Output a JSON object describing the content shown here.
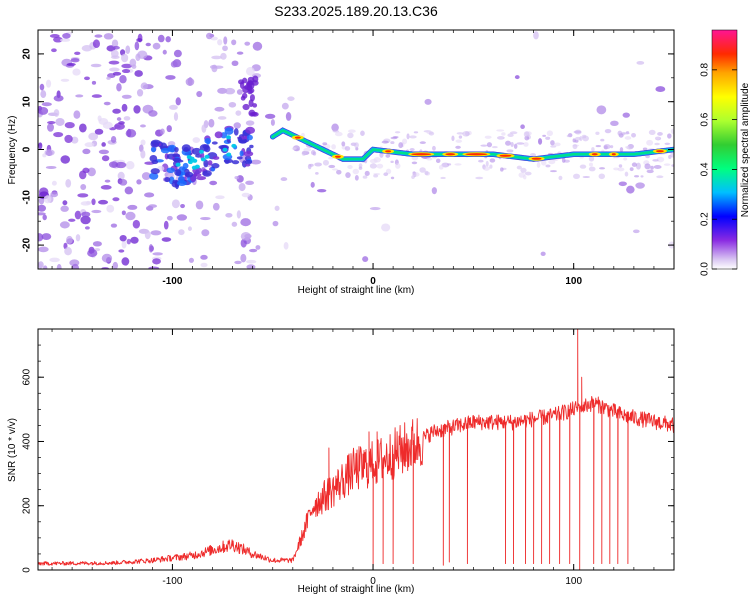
{
  "title": "S233.2025.189.20.13.C36",
  "chart_data": [
    {
      "type": "heatmap",
      "xlabel": "Height of straight line (km)",
      "ylabel": "Frequency (Hz)",
      "xlim": [
        -167,
        150
      ],
      "ylim": [
        -25,
        25
      ],
      "x_ticks": [
        -100,
        0,
        100
      ],
      "y_ticks": [
        -20,
        -10,
        0,
        10,
        20
      ],
      "colorbar": {
        "label": "Normalized spectral amplitude",
        "range": [
          0,
          0.96
        ],
        "ticks": [
          0.0,
          0.2,
          0.4,
          0.6,
          0.8
        ]
      },
      "ridge": {
        "description_points": [
          {
            "x": -110,
            "y": -2
          },
          {
            "x": -95,
            "y": -4
          },
          {
            "x": -80,
            "y": -1
          },
          {
            "x": -70,
            "y": 1
          },
          {
            "x": -60,
            "y": 0
          },
          {
            "x": -45,
            "y": 4
          },
          {
            "x": -35,
            "y": 2
          },
          {
            "x": -25,
            "y": 0
          },
          {
            "x": -15,
            "y": -2
          },
          {
            "x": -5,
            "y": -2
          },
          {
            "x": 0,
            "y": 0
          },
          {
            "x": 20,
            "y": -1
          },
          {
            "x": 60,
            "y": -1
          },
          {
            "x": 80,
            "y": -2
          },
          {
            "x": 100,
            "y": -1
          },
          {
            "x": 130,
            "y": -1
          },
          {
            "x": 150,
            "y": 0
          }
        ]
      }
    },
    {
      "type": "line",
      "xlabel": "Height of straight line (km)",
      "ylabel": "SNR (10 * v/v)",
      "xlim": [
        -167,
        150
      ],
      "ylim": [
        0,
        750
      ],
      "x_ticks": [
        -100,
        0,
        100
      ],
      "y_ticks": [
        0,
        200,
        400,
        600
      ],
      "series": [
        {
          "color": "#ee2b2b",
          "envelope": [
            {
              "x": -167,
              "y": 20
            },
            {
              "x": -130,
              "y": 22
            },
            {
              "x": -110,
              "y": 30
            },
            {
              "x": -90,
              "y": 45
            },
            {
              "x": -70,
              "y": 80
            },
            {
              "x": -60,
              "y": 50
            },
            {
              "x": -50,
              "y": 30
            },
            {
              "x": -40,
              "y": 30
            },
            {
              "x": -35,
              "y": 110
            },
            {
              "x": -30,
              "y": 200
            },
            {
              "x": -20,
              "y": 250
            },
            {
              "x": -10,
              "y": 310
            },
            {
              "x": 0,
              "y": 330
            },
            {
              "x": 10,
              "y": 360
            },
            {
              "x": 20,
              "y": 390
            },
            {
              "x": 30,
              "y": 430
            },
            {
              "x": 50,
              "y": 460
            },
            {
              "x": 70,
              "y": 460
            },
            {
              "x": 90,
              "y": 480
            },
            {
              "x": 100,
              "y": 500
            },
            {
              "x": 110,
              "y": 520
            },
            {
              "x": 125,
              "y": 480
            },
            {
              "x": 150,
              "y": 450
            }
          ],
          "spikes_up": [
            {
              "x": -22,
              "y": 380
            },
            {
              "x": -2,
              "y": 430
            },
            {
              "x": 2,
              "y": 430
            },
            {
              "x": 102,
              "y": 750
            },
            {
              "x": 104,
              "y": 600
            }
          ],
          "dropouts": [
            {
              "x": 0,
              "y": 10
            },
            {
              "x": 5,
              "y": 20
            },
            {
              "x": 10,
              "y": 20
            },
            {
              "x": 20,
              "y": 20
            },
            {
              "x": 35,
              "y": 15
            },
            {
              "x": 38,
              "y": 25
            },
            {
              "x": 47,
              "y": 20
            },
            {
              "x": 66,
              "y": 20
            },
            {
              "x": 70,
              "y": 20
            },
            {
              "x": 76,
              "y": 20
            },
            {
              "x": 80,
              "y": 20
            },
            {
              "x": 84,
              "y": 20
            },
            {
              "x": 88,
              "y": 20
            },
            {
              "x": 93,
              "y": 20
            },
            {
              "x": 98,
              "y": 20
            },
            {
              "x": 103,
              "y": 0
            },
            {
              "x": 110,
              "y": 20
            },
            {
              "x": 114,
              "y": 20
            },
            {
              "x": 118,
              "y": 20
            },
            {
              "x": 122,
              "y": 20
            },
            {
              "x": 127,
              "y": 20
            }
          ]
        }
      ]
    }
  ]
}
